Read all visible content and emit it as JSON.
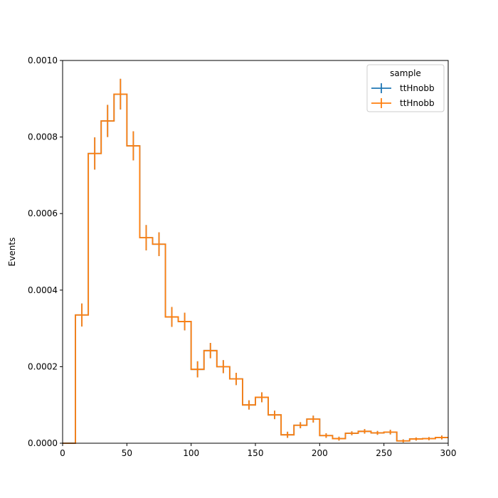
{
  "chart_data": {
    "type": "histogram",
    "title": "",
    "xlabel": "",
    "ylabel": "Events",
    "xlim": [
      0,
      300
    ],
    "ylim": [
      0,
      0.001
    ],
    "xticks": [
      0,
      50,
      100,
      150,
      200,
      250,
      300
    ],
    "xtick_labels": [
      "0",
      "50",
      "100",
      "150",
      "200",
      "250",
      "300"
    ],
    "yticks": [
      0,
      0.0002,
      0.0004,
      0.0006,
      0.0008,
      0.001
    ],
    "ytick_labels": [
      "0.0000",
      "0.0002",
      "0.0004",
      "0.0006",
      "0.0008",
      "0.0010"
    ],
    "grid": false,
    "legend": {
      "title": "sample",
      "position": "top-right"
    },
    "bin_edges": [
      0,
      10,
      20,
      30,
      40,
      50,
      60,
      70,
      80,
      90,
      100,
      110,
      120,
      130,
      140,
      150,
      160,
      170,
      180,
      190,
      200,
      210,
      220,
      230,
      240,
      250,
      260,
      270,
      280,
      290,
      300
    ],
    "series": [
      {
        "name": "ttHnobb",
        "color": "#1f77b4",
        "values": [
          0,
          0.000335,
          0.000757,
          0.000842,
          0.000912,
          0.000777,
          0.000537,
          0.00052,
          0.00033,
          0.000318,
          0.000193,
          0.000242,
          0.0002,
          0.000168,
          0.0001,
          0.00012,
          7.4e-05,
          2.2e-05,
          4.7e-05,
          6.3e-05,
          2e-05,
          1.2e-05,
          2.6e-05,
          3.1e-05,
          2.7e-05,
          2.9e-05,
          6e-06,
          1.1e-05,
          1.2e-05,
          1.5e-05
        ],
        "errors": [
          0,
          3e-05,
          4.2e-05,
          4.2e-05,
          4e-05,
          3.8e-05,
          3.3e-05,
          3.1e-05,
          2.6e-05,
          2.3e-05,
          2.1e-05,
          2e-05,
          1.7e-05,
          1.6e-05,
          1.2e-05,
          1.3e-05,
          1.1e-05,
          8e-06,
          8e-06,
          9e-06,
          6e-06,
          5e-06,
          5e-06,
          6e-06,
          5e-06,
          6e-06,
          4e-06,
          4e-06,
          4e-06,
          5e-06
        ]
      },
      {
        "name": "ttHnobb",
        "color": "#ff7f0e",
        "values": [
          0,
          0.000335,
          0.000757,
          0.000842,
          0.000912,
          0.000777,
          0.000537,
          0.00052,
          0.00033,
          0.000318,
          0.000193,
          0.000242,
          0.0002,
          0.000168,
          0.0001,
          0.00012,
          7.4e-05,
          2.2e-05,
          4.7e-05,
          6.3e-05,
          2e-05,
          1.2e-05,
          2.6e-05,
          3.1e-05,
          2.7e-05,
          2.9e-05,
          6e-06,
          1.1e-05,
          1.2e-05,
          1.5e-05
        ],
        "errors": [
          0,
          3e-05,
          4.2e-05,
          4.2e-05,
          4e-05,
          3.8e-05,
          3.3e-05,
          3.1e-05,
          2.6e-05,
          2.3e-05,
          2.1e-05,
          2e-05,
          1.7e-05,
          1.6e-05,
          1.2e-05,
          1.3e-05,
          1.1e-05,
          8e-06,
          8e-06,
          9e-06,
          6e-06,
          5e-06,
          5e-06,
          6e-06,
          5e-06,
          6e-06,
          4e-06,
          4e-06,
          4e-06,
          5e-06
        ]
      }
    ]
  }
}
